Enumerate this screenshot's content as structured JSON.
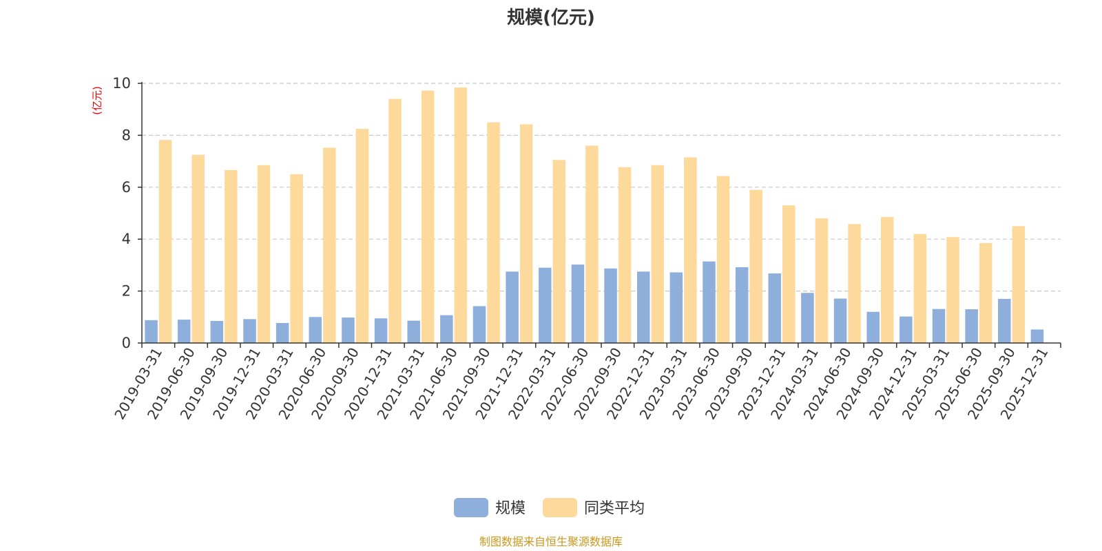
{
  "chart_data": {
    "type": "bar",
    "title": "规模(亿元)",
    "ylabel": "(亿元)",
    "xlabel": "",
    "ylim": [
      0,
      10
    ],
    "yticks": [
      0,
      2,
      4,
      6,
      8,
      10
    ],
    "grid": true,
    "legend_position": "bottom",
    "categories": [
      "2019-03-31",
      "2019-06-30",
      "2019-09-30",
      "2019-12-31",
      "2020-03-31",
      "2020-06-30",
      "2020-09-30",
      "2020-12-31",
      "2021-03-31",
      "2021-06-30",
      "2021-09-30",
      "2021-12-31",
      "2022-03-31",
      "2022-06-30",
      "2022-09-30",
      "2022-12-31",
      "2023-03-31",
      "2023-06-30",
      "2023-09-30",
      "2023-12-31",
      "2024-03-31",
      "2024-06-30",
      "2024-09-30",
      "2024-12-31",
      "2025-03-31",
      "2025-06-30",
      "2025-09-30",
      "2025-12-31"
    ],
    "series": [
      {
        "name": "规模",
        "color": "#8eaedb",
        "values": [
          0.88,
          0.9,
          0.85,
          0.92,
          0.77,
          1.0,
          0.98,
          0.95,
          0.86,
          1.07,
          1.42,
          2.75,
          2.9,
          3.02,
          2.87,
          2.75,
          2.72,
          3.14,
          2.92,
          2.68,
          1.93,
          1.71,
          1.2,
          1.02,
          1.31,
          1.3,
          1.7,
          0.52
        ]
      },
      {
        "name": "同类平均",
        "color": "#fdd99b",
        "values": [
          7.82,
          7.25,
          6.66,
          6.85,
          6.5,
          7.52,
          8.25,
          9.4,
          9.72,
          9.84,
          8.5,
          8.42,
          7.05,
          7.6,
          6.77,
          6.85,
          7.15,
          6.43,
          5.9,
          5.3,
          4.8,
          4.58,
          4.85,
          4.2,
          4.08,
          3.85,
          4.5,
          null
        ]
      }
    ]
  },
  "colors": {
    "axis": "#333333",
    "grid": "#c8c8c8",
    "unit_label": "#ee0000",
    "source_text": "#c8971e"
  },
  "source": "制图数据来自恒生聚源数据库"
}
